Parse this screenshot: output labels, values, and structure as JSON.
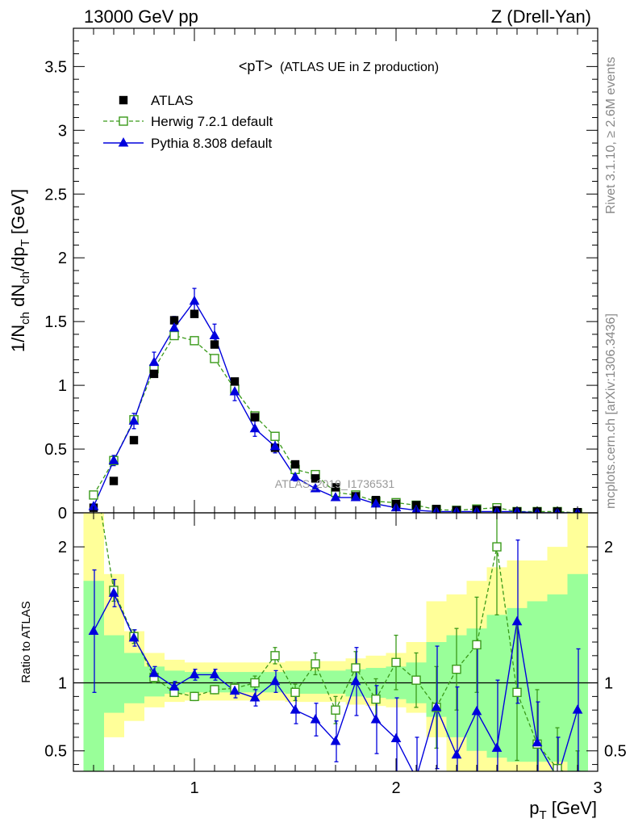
{
  "header": {
    "left": "13000 GeV pp",
    "right": "Z (Drell-Yan)"
  },
  "side_text": {
    "rivet": "Rivet 3.1.10, ≥ 2.6M events",
    "mcplots": "mcplots.cern.ch [arXiv:1306.3436]"
  },
  "watermark": "ATLAS_2019_I1736531",
  "colors": {
    "atlas": "#000000",
    "herwig": "#3a9a1a",
    "pythia": "#0000dd",
    "band_yellow": "#ffff99",
    "band_green": "#99ff99"
  },
  "chart_data": [
    {
      "type": "scatter",
      "title": "<pT>",
      "title_suffix": "(ATLAS UE in Z production)",
      "xlabel": "",
      "ylabel": "1/N_ch dN_ch/dp_T [GeV]",
      "ylabel_parts": {
        "main": "1/N",
        "sub1": "ch",
        "mid": " dN",
        "sub2": "ch",
        "mid2": "/dp",
        "sub3": "T",
        "end": " [GeV]"
      },
      "xlim": [
        0.4,
        3.0
      ],
      "ylim": [
        0,
        3.8
      ],
      "yticks": [
        0,
        0.5,
        1,
        1.5,
        2,
        2.5,
        3,
        3.5
      ],
      "ytick_labels": [
        "0",
        "0.5",
        "1",
        "1.5",
        "2",
        "2.5",
        "3",
        "3.5"
      ],
      "legend_position": "top-left",
      "x": [
        0.5,
        0.6,
        0.7,
        0.8,
        0.9,
        1.0,
        1.1,
        1.2,
        1.3,
        1.4,
        1.5,
        1.6,
        1.7,
        1.8,
        1.9,
        2.0,
        2.1,
        2.2,
        2.3,
        2.4,
        2.5,
        2.6,
        2.7,
        2.8,
        2.9
      ],
      "series": [
        {
          "name": "ATLAS",
          "style": "square-filled",
          "values": [
            0.04,
            0.25,
            0.57,
            1.09,
            1.51,
            1.56,
            1.32,
            1.03,
            0.75,
            0.51,
            0.38,
            0.27,
            0.2,
            0.13,
            0.1,
            0.07,
            0.06,
            0.03,
            0.02,
            0.025,
            0.02,
            0.01,
            0.01,
            0.01,
            0.005
          ]
        },
        {
          "name": "Herwig 7.2.1 default",
          "style": "square-open-dashed",
          "values": [
            0.14,
            0.41,
            0.73,
            1.13,
            1.39,
            1.35,
            1.21,
            0.97,
            0.76,
            0.6,
            0.34,
            0.3,
            0.16,
            0.14,
            0.09,
            0.08,
            0.06,
            0.025,
            0.02,
            0.03,
            0.04,
            0.01,
            0.01,
            0.01,
            0.0
          ]
        },
        {
          "name": "Pythia 8.308 default",
          "style": "triangle-filled-solid",
          "values": [
            0.05,
            0.41,
            0.72,
            1.18,
            1.45,
            1.66,
            1.39,
            0.95,
            0.66,
            0.52,
            0.28,
            0.19,
            0.12,
            0.12,
            0.07,
            0.04,
            0.02,
            0.01,
            0.01,
            0.01,
            0.01,
            0.01,
            0.0,
            0.0,
            0.0
          ],
          "errors": [
            0.01,
            0.04,
            0.06,
            0.08,
            0.09,
            0.1,
            0.09,
            0.07,
            0.06,
            0.05,
            0.03,
            0.02,
            0.02,
            0.02,
            0.01,
            0.01,
            0.01,
            0.005,
            0.005,
            0.005,
            0.005,
            0.005,
            0.0,
            0.0,
            0.0
          ]
        }
      ]
    },
    {
      "type": "line",
      "title": "",
      "xlabel": "p_T [GeV]",
      "xlabel_parts": {
        "main": "p",
        "sub": "T",
        "end": " [GeV]"
      },
      "ylabel": "Ratio to ATLAS",
      "xlim": [
        0.4,
        3.0
      ],
      "ylim": [
        0.35,
        2.25
      ],
      "yticks": [
        0.5,
        1,
        2
      ],
      "ytick_labels": [
        "0.5",
        "1",
        "2"
      ],
      "xticks": [
        1,
        2,
        3
      ],
      "xtick_labels": [
        "1",
        "2",
        "3"
      ],
      "x": [
        0.5,
        0.6,
        0.7,
        0.8,
        0.9,
        1.0,
        1.1,
        1.2,
        1.3,
        1.4,
        1.5,
        1.6,
        1.7,
        1.8,
        1.9,
        2.0,
        2.1,
        2.2,
        2.3,
        2.4,
        2.5,
        2.6,
        2.7,
        2.8,
        2.9
      ],
      "bands": {
        "edges": [
          0.45,
          0.55,
          0.65,
          0.75,
          0.85,
          0.95,
          1.05,
          1.15,
          1.25,
          1.35,
          1.45,
          1.55,
          1.65,
          1.75,
          1.85,
          1.95,
          2.05,
          2.15,
          2.25,
          2.35,
          2.45,
          2.55,
          2.65,
          2.75,
          2.85,
          2.95
        ],
        "yellow_lo": [
          0.35,
          0.6,
          0.72,
          0.82,
          0.86,
          0.87,
          0.87,
          0.87,
          0.87,
          0.87,
          0.86,
          0.86,
          0.86,
          0.84,
          0.83,
          0.82,
          0.78,
          0.6,
          0.35,
          0.35,
          0.35,
          0.35,
          0.35,
          0.35,
          0.35
        ],
        "yellow_hi": [
          2.25,
          1.8,
          1.38,
          1.22,
          1.17,
          1.15,
          1.15,
          1.15,
          1.15,
          1.15,
          1.16,
          1.16,
          1.16,
          1.18,
          1.2,
          1.22,
          1.3,
          1.6,
          1.65,
          1.75,
          1.85,
          1.9,
          1.9,
          2.0,
          2.25
        ],
        "green_lo": [
          0.35,
          0.78,
          0.85,
          0.9,
          0.92,
          0.93,
          0.93,
          0.93,
          0.93,
          0.93,
          0.92,
          0.92,
          0.92,
          0.9,
          0.89,
          0.88,
          0.85,
          0.75,
          0.6,
          0.5,
          0.45,
          0.42,
          0.42,
          0.42,
          0.35
        ],
        "green_hi": [
          1.75,
          1.35,
          1.22,
          1.12,
          1.09,
          1.08,
          1.08,
          1.08,
          1.08,
          1.08,
          1.09,
          1.09,
          1.09,
          1.1,
          1.11,
          1.12,
          1.15,
          1.3,
          1.35,
          1.4,
          1.5,
          1.55,
          1.6,
          1.65,
          1.8
        ]
      },
      "series": [
        {
          "name": "Herwig 7.2.1 default",
          "style": "square-open-dashed",
          "values": [
            2.6,
            1.68,
            1.34,
            1.04,
            0.93,
            0.9,
            0.95,
            0.96,
            1.0,
            1.2,
            0.93,
            1.14,
            0.8,
            1.11,
            0.88,
            1.15,
            1.02,
            0.82,
            1.1,
            1.28,
            2.0,
            0.93,
            0.55,
            0.37,
            0.3
          ],
          "err_lo": [
            0.2,
            0.08,
            0.05,
            0.04,
            0.03,
            0.03,
            0.03,
            0.04,
            0.05,
            0.06,
            0.06,
            0.08,
            0.1,
            0.12,
            0.15,
            0.2,
            0.2,
            0.3,
            0.3,
            0.35,
            0.5,
            0.5,
            0.4,
            0.3,
            0.2
          ],
          "err_hi": [
            0.2,
            0.08,
            0.05,
            0.04,
            0.03,
            0.03,
            0.03,
            0.04,
            0.05,
            0.06,
            0.06,
            0.08,
            0.1,
            0.12,
            0.15,
            0.2,
            0.2,
            0.3,
            0.3,
            0.35,
            0.5,
            0.5,
            0.4,
            0.3,
            0.2
          ]
        },
        {
          "name": "Pythia 8.308 default",
          "style": "triangle-filled-solid",
          "values": [
            1.38,
            1.66,
            1.33,
            1.07,
            0.97,
            1.06,
            1.06,
            0.94,
            0.89,
            1.01,
            0.8,
            0.73,
            0.57,
            1.01,
            0.73,
            0.59,
            0.3,
            0.82,
            0.47,
            0.79,
            0.52,
            1.45,
            0.56,
            0.3,
            0.8
          ],
          "err_lo": [
            0.45,
            0.1,
            0.06,
            0.05,
            0.04,
            0.04,
            0.04,
            0.05,
            0.06,
            0.08,
            0.1,
            0.12,
            0.15,
            0.25,
            0.25,
            0.3,
            0.3,
            0.45,
            0.5,
            0.5,
            0.5,
            0.6,
            0.3,
            0.3,
            0.45
          ],
          "err_hi": [
            0.45,
            0.1,
            0.06,
            0.05,
            0.04,
            0.04,
            0.04,
            0.05,
            0.06,
            0.08,
            0.1,
            0.12,
            0.15,
            0.25,
            0.25,
            0.3,
            0.3,
            0.45,
            0.5,
            0.5,
            0.5,
            0.6,
            0.3,
            0.3,
            0.45
          ]
        }
      ]
    }
  ]
}
